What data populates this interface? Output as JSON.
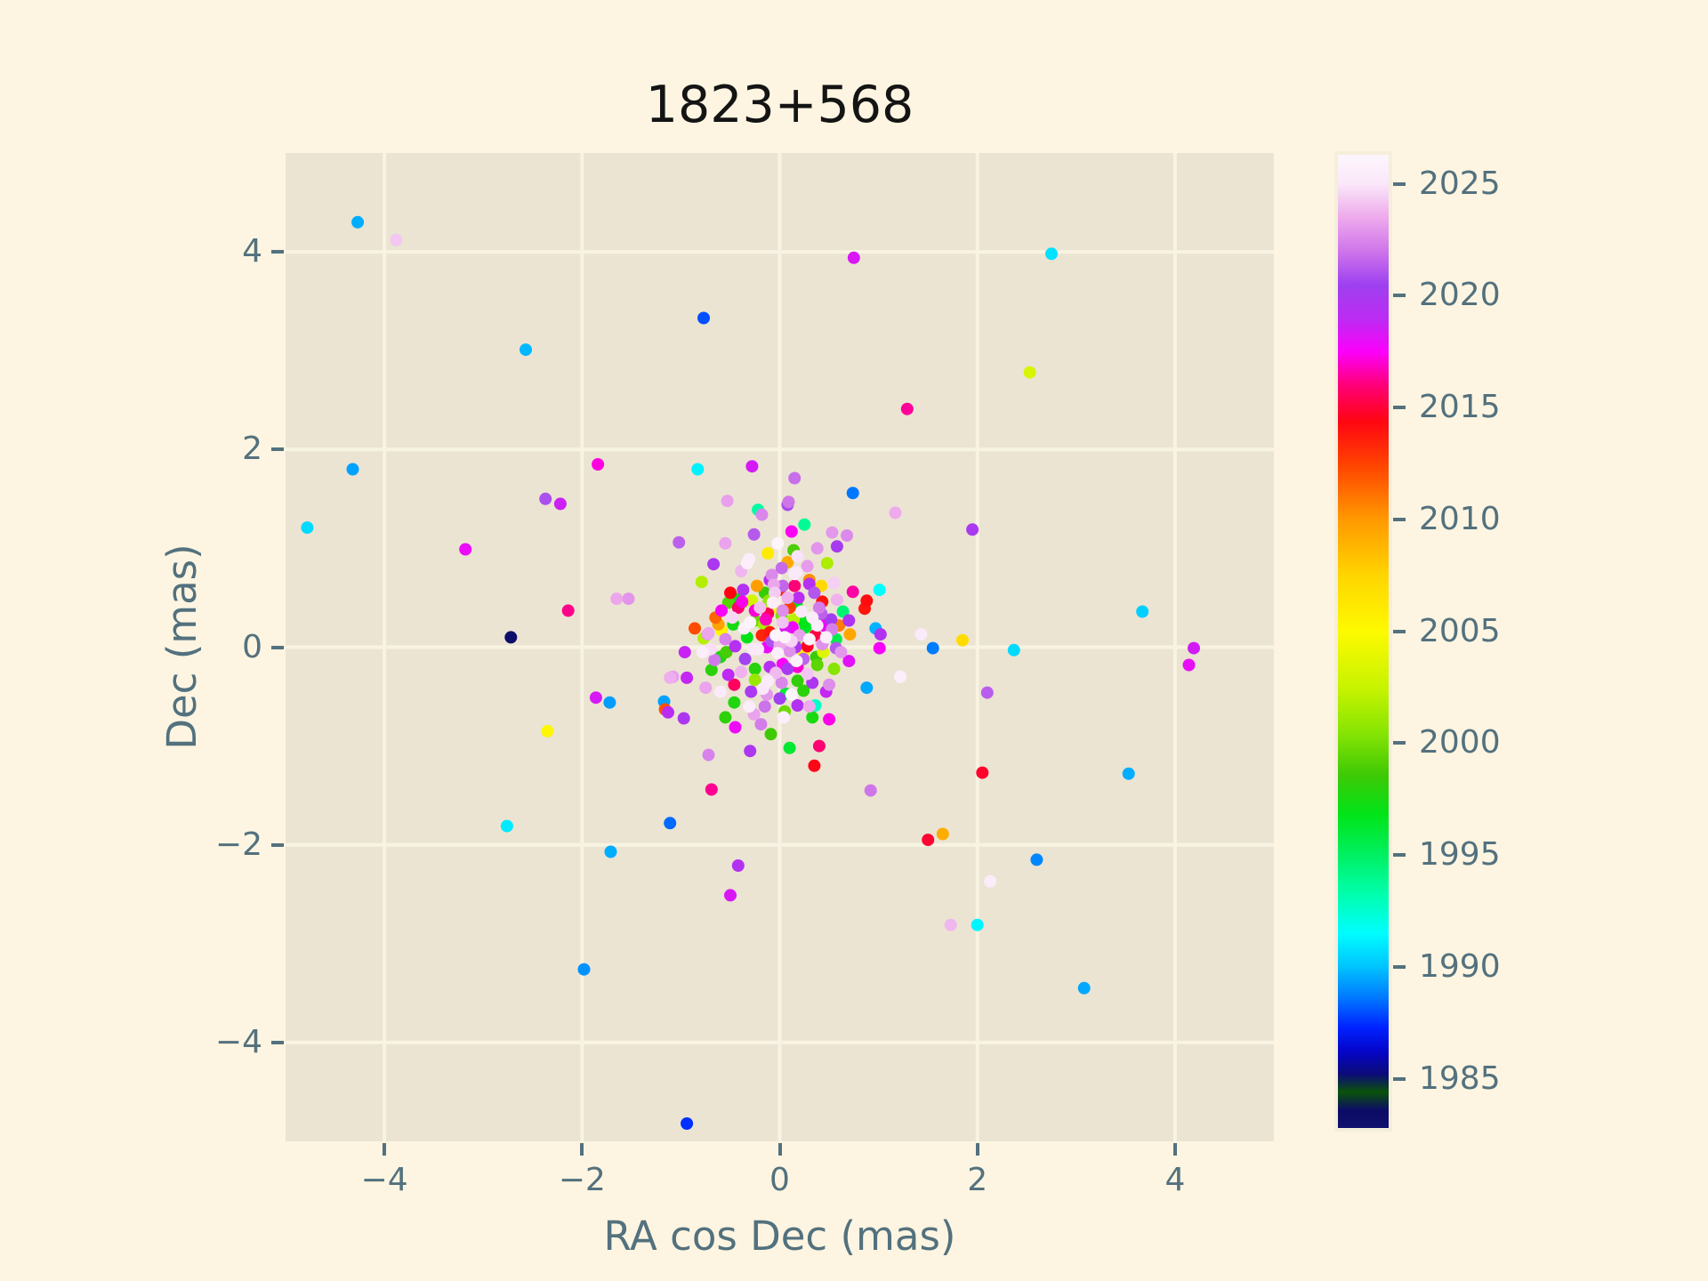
{
  "colors": {
    "background": "#fdf5e1",
    "plot_background": "#ebe4d2",
    "grid": "#f8f3e2",
    "text": "#53717e",
    "title": "#141414"
  },
  "chart_data": {
    "type": "scatter",
    "title": "1823+568",
    "xlabel": "RA cos Dec (mas)",
    "ylabel": "Dec (mas)",
    "xlim": [
      -5,
      5
    ],
    "ylim": [
      -5,
      5
    ],
    "grid": true,
    "legend": "colorbar-right",
    "xticks": {
      "values": [
        -4,
        -2,
        0,
        2,
        4
      ],
      "labels": [
        "−4",
        "−2",
        "0",
        "2",
        "4"
      ]
    },
    "yticks": {
      "values": [
        -4,
        -2,
        0,
        2,
        4
      ],
      "labels": [
        "−4",
        "−2",
        "0",
        "2",
        "4"
      ]
    },
    "colorbar": {
      "vmin": 1982.8,
      "vmax": 2026.3,
      "ticks": [
        1985,
        1990,
        1995,
        2000,
        2005,
        2010,
        2015,
        2020,
        2025
      ],
      "tick_labels": [
        "1985",
        "1990",
        "1995",
        "2000",
        "2005",
        "2010",
        "2015",
        "2020",
        "2025"
      ],
      "stops": [
        [
          1982.8,
          "#10106e"
        ],
        [
          1983.6,
          "#0c0c66"
        ],
        [
          1984.4,
          "#0a520a"
        ],
        [
          1985.2,
          "#0b0b78"
        ],
        [
          1986.2,
          "#0505c8"
        ],
        [
          1987.3,
          "#0022ff"
        ],
        [
          1988.6,
          "#0077ff"
        ],
        [
          1990.0,
          "#00c3ff"
        ],
        [
          1991.5,
          "#00fdff"
        ],
        [
          1993.2,
          "#00ffaf"
        ],
        [
          1995.0,
          "#00f062"
        ],
        [
          1996.8,
          "#00e418"
        ],
        [
          1998.6,
          "#3fc905"
        ],
        [
          2000.4,
          "#85e403"
        ],
        [
          2002.4,
          "#c6f300"
        ],
        [
          2005.0,
          "#fdfa00"
        ],
        [
          2007.5,
          "#ffd500"
        ],
        [
          2010.0,
          "#ff9900"
        ],
        [
          2012.4,
          "#ff4400"
        ],
        [
          2014.4,
          "#ff0512"
        ],
        [
          2016.0,
          "#ff0077"
        ],
        [
          2017.5,
          "#fb00fb"
        ],
        [
          2019.0,
          "#bb2cf2"
        ],
        [
          2020.5,
          "#9e41f0"
        ],
        [
          2022.0,
          "#cf75ea"
        ],
        [
          2023.5,
          "#eeaaec"
        ],
        [
          2025.0,
          "#fae7f9"
        ],
        [
          2026.3,
          "#fdf6fc"
        ]
      ]
    },
    "points": [
      [
        -4.27,
        4.3,
        1989.6
      ],
      [
        -3.88,
        4.12,
        2024.2
      ],
      [
        -2.57,
        3.01,
        1989.8
      ],
      [
        -0.77,
        3.33,
        1988.0
      ],
      [
        -4.32,
        1.8,
        1989.4
      ],
      [
        -4.78,
        1.21,
        1990.6
      ],
      [
        -1.84,
        1.85,
        2017.2
      ],
      [
        -0.83,
        1.8,
        1991.2
      ],
      [
        -0.28,
        1.83,
        2018.4
      ],
      [
        -2.37,
        1.5,
        2020.9
      ],
      [
        -2.22,
        1.45,
        2018.6
      ],
      [
        -3.18,
        0.99,
        2017.9
      ],
      [
        -2.14,
        0.37,
        2016.2
      ],
      [
        -2.72,
        0.1,
        1983.2
      ],
      [
        -1.65,
        0.49,
        2023.4
      ],
      [
        -1.53,
        0.49,
        2022.9
      ],
      [
        -1.02,
        1.06,
        2021.4
      ],
      [
        -0.67,
        0.84,
        2019.8
      ],
      [
        -0.79,
        0.66,
        2001.8
      ],
      [
        -0.31,
        0.89,
        2025.6
      ],
      [
        -0.86,
        0.19,
        2012.2
      ],
      [
        -0.59,
        0.37,
        2017.6
      ],
      [
        0.75,
        3.94,
        2018.3
      ],
      [
        2.75,
        3.98,
        1990.8
      ],
      [
        2.53,
        2.78,
        2003.2
      ],
      [
        1.29,
        2.41,
        2016.4
      ],
      [
        1.95,
        1.19,
        2019.9
      ],
      [
        3.67,
        0.36,
        1990.3
      ],
      [
        4.19,
        -0.01,
        2018.5
      ],
      [
        4.14,
        -0.18,
        2018.0
      ],
      [
        1.55,
        -0.01,
        1988.7
      ],
      [
        2.37,
        -0.03,
        1990.6
      ],
      [
        2.1,
        -0.46,
        2021.3
      ],
      [
        2.05,
        -1.27,
        2014.8
      ],
      [
        3.53,
        -1.28,
        1989.6
      ],
      [
        0.4,
        -1.0,
        2015.9
      ],
      [
        0.35,
        -1.2,
        2014.5
      ],
      [
        0.92,
        -1.45,
        2022.0
      ],
      [
        1.5,
        -1.95,
        2014.9
      ],
      [
        1.65,
        -1.89,
        2009.2
      ],
      [
        2.6,
        -2.15,
        1988.9
      ],
      [
        2.13,
        -2.37,
        2025.4
      ],
      [
        1.73,
        -2.81,
        2023.8
      ],
      [
        2.0,
        -2.81,
        1991.3
      ],
      [
        3.08,
        -3.45,
        1989.5
      ],
      [
        -2.35,
        -0.85,
        2005.2
      ],
      [
        -2.76,
        -1.81,
        1991.0
      ],
      [
        -1.72,
        -0.56,
        1989.3
      ],
      [
        -1.86,
        -0.51,
        2018.4
      ],
      [
        -1.71,
        -2.07,
        1989.6
      ],
      [
        -1.98,
        -3.26,
        1989.1
      ],
      [
        -0.94,
        -4.82,
        1987.5
      ],
      [
        -1.11,
        -1.78,
        1988.4
      ],
      [
        -0.5,
        -2.51,
        2018.3
      ],
      [
        -0.42,
        -2.21,
        2019.4
      ],
      [
        -0.69,
        -1.44,
        2016.3
      ],
      [
        -1.16,
        -0.63,
        2012.1
      ],
      [
        -1.13,
        -0.66,
        2019.1
      ],
      [
        -1.17,
        -0.55,
        1989.4
      ],
      [
        -1.08,
        -0.3,
        2023.2
      ],
      [
        -0.97,
        -0.72,
        2019.8
      ],
      [
        -0.72,
        -1.09,
        2022.4
      ],
      [
        -0.96,
        -0.05,
        2018.7
      ],
      [
        -0.78,
        -0.05,
        2025.5
      ],
      [
        -0.66,
        -0.13,
        2022.1
      ],
      [
        -0.94,
        -0.31,
        2018.8
      ],
      [
        -1.11,
        -0.31,
        2023.6
      ],
      [
        -0.69,
        -0.23,
        1998.0
      ],
      [
        -0.75,
        -0.41,
        2023.3
      ],
      [
        -0.62,
        0.23,
        2009.6
      ],
      [
        -0.72,
        0.14,
        2023.4
      ],
      [
        0.74,
        1.56,
        1988.6
      ],
      [
        1.17,
        1.36,
        2023.5
      ],
      [
        0.53,
        1.16,
        2023.0
      ],
      [
        0.68,
        1.13,
        2022.6
      ],
      [
        0.15,
        1.71,
        2021.8
      ],
      [
        0.08,
        1.44,
        2020.8
      ],
      [
        0.25,
        1.24,
        1993.8
      ],
      [
        0.12,
        1.17,
        2017.4
      ],
      [
        0.14,
        0.98,
        1998.9
      ],
      [
        0.08,
        0.86,
        2009.3
      ],
      [
        0.15,
        0.74,
        2025.2
      ],
      [
        -0.53,
        1.48,
        2023.2
      ],
      [
        0.09,
        1.47,
        2022.0
      ],
      [
        -0.22,
        1.39,
        1993.5
      ],
      [
        -0.18,
        1.34,
        2022.5
      ],
      [
        -0.26,
        1.14,
        2021.2
      ],
      [
        -0.08,
        0.73,
        2022.6
      ],
      [
        0.3,
        0.68,
        2010.3
      ],
      [
        0.3,
        0.64,
        2019.2
      ],
      [
        -0.06,
        0.63,
        2023.4
      ],
      [
        0.03,
        0.62,
        2021.6
      ],
      [
        -0.37,
        0.58,
        2019.4
      ],
      [
        -0.15,
        0.55,
        1998.3
      ],
      [
        -0.11,
        0.47,
        2000.8
      ],
      [
        -0.45,
        0.49,
        1997.2
      ],
      [
        -0.38,
        0.45,
        2001.2
      ],
      [
        0.0,
        0.58,
        2013.6
      ],
      [
        0.19,
        0.5,
        2019.0
      ],
      [
        0.08,
        0.5,
        2023.6
      ],
      [
        -0.39,
        0.77,
        2023.8
      ],
      [
        0.17,
        0.76,
        2025.0
      ],
      [
        1.22,
        -0.3,
        2025.7
      ],
      [
        0.88,
        -0.41,
        1989.5
      ],
      [
        0.36,
        -0.59,
        1992.6
      ],
      [
        0.33,
        -0.71,
        1997.5
      ],
      [
        -0.09,
        -0.88,
        1998.6
      ],
      [
        -0.46,
        -0.38,
        2015.6
      ],
      [
        0.97,
        0.19,
        1989.7
      ],
      [
        1.02,
        0.13,
        2019.5
      ],
      [
        1.01,
        0.58,
        1991.5
      ],
      [
        0.74,
        0.56,
        2016.5
      ],
      [
        0.88,
        0.47,
        2014.2
      ],
      [
        0.86,
        0.39,
        2013.9
      ],
      [
        1.43,
        0.13,
        2025.3
      ],
      [
        1.85,
        0.07,
        2007.0
      ],
      [
        1.01,
        -0.01,
        2017.6
      ],
      [
        0.7,
        0.27,
        2019.6
      ],
      [
        0.71,
        0.13,
        2009.4
      ],
      [
        0.43,
        0.31,
        1997.8
      ],
      [
        0.43,
        0.46,
        2014.0
      ],
      [
        0.17,
        0.44,
        1996.6
      ],
      [
        -0.38,
        0.46,
        2017.3
      ],
      [
        -0.52,
        0.45,
        1999.2
      ],
      [
        -0.07,
        0.45,
        2025.6
      ],
      [
        0.42,
        0.34,
        2021.4
      ],
      [
        0.03,
        0.37,
        2022.7
      ],
      [
        -0.25,
        0.37,
        2017.1
      ],
      [
        -0.12,
        0.34,
        2015.4
      ],
      [
        -0.59,
        0.17,
        2005.4
      ],
      [
        -0.73,
        0.13,
        2023.1
      ],
      [
        -0.47,
        0.23,
        1997.4
      ],
      [
        -0.36,
        0.19,
        2025.8
      ],
      [
        -0.25,
        0.27,
        1999.6
      ],
      [
        -0.16,
        0.23,
        2001.4
      ],
      [
        -0.1,
        0.15,
        2013.8
      ],
      [
        0.03,
        0.25,
        2024.1
      ],
      [
        0.13,
        0.2,
        2017.7
      ],
      [
        0.25,
        0.25,
        1996.8
      ],
      [
        0.38,
        0.22,
        2025.4
      ],
      [
        0.53,
        0.18,
        2022.3
      ],
      [
        -0.45,
        0.01,
        2019.3
      ],
      [
        -0.54,
        -0.05,
        1998.8
      ],
      [
        -0.27,
        -0.02,
        2025.1
      ],
      [
        -0.13,
        0.0,
        2017.9
      ],
      [
        0.0,
        0.03,
        2023.5
      ],
      [
        0.15,
        0.04,
        1999.0
      ],
      [
        0.28,
        0.01,
        2014.6
      ],
      [
        0.43,
        0.03,
        2022.8
      ],
      [
        0.57,
        -0.01,
        2021.2
      ],
      [
        0.24,
        -0.05,
        2005.6
      ],
      [
        0.37,
        -0.1,
        1998.4
      ],
      [
        0.17,
        -0.14,
        2025.9
      ],
      [
        0.03,
        -0.17,
        2017.5
      ],
      [
        -0.1,
        -0.2,
        2019.2
      ],
      [
        -0.25,
        -0.22,
        1997.9
      ],
      [
        -0.39,
        -0.25,
        2023.7
      ],
      [
        -0.12,
        -0.34,
        2025.3
      ],
      [
        0.02,
        -0.36,
        2022.5
      ],
      [
        0.18,
        -0.34,
        1998.2
      ],
      [
        0.33,
        -0.36,
        2019.7
      ],
      [
        0.47,
        -0.45,
        2018.8
      ],
      [
        0.06,
        -0.47,
        1996.0
      ],
      [
        -0.13,
        -0.48,
        2023.0
      ],
      [
        0.18,
        -0.59,
        2019.5
      ],
      [
        -0.31,
        -0.6,
        2025.5
      ],
      [
        -0.46,
        -0.56,
        1997.7
      ],
      [
        -0.29,
        -0.45,
        2019.9
      ],
      [
        0.5,
        -0.73,
        2017.3
      ],
      [
        -0.55,
        -0.71,
        1998.1
      ],
      [
        -0.26,
        -0.68,
        2023.3
      ],
      [
        0.04,
        -0.71,
        2025.7
      ],
      [
        -0.19,
        -0.78,
        2022.2
      ],
      [
        -0.45,
        -0.81,
        2017.8
      ],
      [
        -0.77,
        0.09,
        2001.9
      ],
      [
        -0.3,
        -1.05,
        2019.7
      ],
      [
        0.1,
        -1.02,
        1996.2
      ],
      [
        0.05,
        0.1,
        2025.8
      ],
      [
        0.12,
        0.06,
        2024.5
      ],
      [
        -0.04,
        0.12,
        2026.0
      ],
      [
        0.2,
        0.12,
        2023.2
      ],
      [
        0.1,
        -0.04,
        2022.8
      ],
      [
        -0.02,
        -0.06,
        2025.5
      ],
      [
        0.16,
        0.0,
        2019.6
      ],
      [
        0.06,
        0.2,
        2018.2
      ],
      [
        -0.08,
        0.06,
        2021.0
      ],
      [
        0.02,
        0.32,
        2000.2
      ],
      [
        0.14,
        0.28,
        2002.0
      ],
      [
        -0.14,
        0.28,
        2016.8
      ],
      [
        0.26,
        0.2,
        1996.4
      ],
      [
        0.3,
        0.08,
        2025.9
      ],
      [
        0.24,
        -0.12,
        2021.5
      ],
      [
        -0.18,
        0.12,
        2013.4
      ],
      [
        -0.22,
        -0.02,
        2025.2
      ],
      [
        0.08,
        -0.22,
        2019.9
      ],
      [
        -0.04,
        -0.26,
        2023.9
      ],
      [
        0.18,
        -0.2,
        2017.0
      ],
      [
        0.28,
        -0.27,
        2024.2
      ],
      [
        0.38,
        -0.18,
        1999.4
      ],
      [
        0.44,
        -0.05,
        2003.5
      ],
      [
        0.36,
        0.12,
        2015.2
      ],
      [
        0.47,
        0.1,
        2025.6
      ],
      [
        0.52,
        0.28,
        2020.2
      ],
      [
        0.57,
        0.08,
        1995.5
      ],
      [
        0.4,
        0.4,
        2022.2
      ],
      [
        0.55,
        -0.22,
        2000.5
      ],
      [
        0.62,
        -0.05,
        2023.0
      ],
      [
        0.6,
        0.22,
        2010.8
      ],
      [
        0.33,
        0.3,
        2025.4
      ],
      [
        -0.3,
        0.25,
        2026.1
      ],
      [
        -0.33,
        0.1,
        1996.9
      ],
      [
        -0.35,
        -0.12,
        2020.6
      ],
      [
        -0.25,
        -0.33,
        2001.0
      ],
      [
        -0.17,
        -0.42,
        2025.0
      ],
      [
        -0.55,
        0.08,
        2022.4
      ],
      [
        -0.6,
        -0.1,
        1997.6
      ],
      [
        -0.48,
        0.3,
        2024.6
      ],
      [
        -0.52,
        -0.28,
        2018.9
      ],
      [
        0.0,
        -0.52,
        2020.4
      ],
      [
        0.12,
        -0.48,
        2026.2
      ],
      [
        0.24,
        -0.44,
        1998.0
      ],
      [
        -0.07,
        0.4,
        2004.6
      ],
      [
        -0.2,
        0.4,
        2024.0
      ],
      [
        0.44,
        0.22,
        2017.8
      ],
      [
        0.5,
        -0.38,
        2022.7
      ],
      [
        0.1,
        0.4,
        2012.6
      ],
      [
        0.22,
        0.36,
        2025.1
      ],
      [
        -0.42,
        0.4,
        2015.9
      ],
      [
        -0.28,
        0.47,
        2003.0
      ],
      [
        0.05,
        -0.65,
        1999.8
      ],
      [
        -0.15,
        -0.6,
        2021.9
      ],
      [
        0.3,
        -0.6,
        2023.5
      ],
      [
        0.64,
        0.36,
        1994.6
      ],
      [
        0.7,
        -0.14,
        2018.1
      ],
      [
        -0.65,
        0.3,
        2011.4
      ],
      [
        -0.7,
        -0.02,
        2024.8
      ],
      [
        -0.05,
        0.55,
        2024.3
      ],
      [
        0.35,
        0.55,
        2021.1
      ],
      [
        0.58,
        0.48,
        2023.7
      ],
      [
        -0.5,
        0.55,
        2014.4
      ],
      [
        -0.6,
        -0.45,
        2025.3
      ],
      [
        0.15,
        0.62,
        2016.0
      ],
      [
        0.42,
        0.62,
        2007.2
      ],
      [
        -0.23,
        0.62,
        2009.8
      ],
      [
        -0.1,
        0.68,
        2019.1
      ],
      [
        0.55,
        0.65,
        2024.4
      ],
      [
        0.02,
        0.8,
        2021.7
      ],
      [
        0.28,
        0.82,
        2023.1
      ],
      [
        -0.33,
        0.85,
        2025.7
      ],
      [
        0.48,
        0.85,
        2001.6
      ],
      [
        0.18,
        0.92,
        2024.9
      ],
      [
        -0.12,
        0.95,
        2006.0
      ],
      [
        0.38,
        1.0,
        2022.9
      ],
      [
        -0.02,
        1.05,
        2026.2
      ],
      [
        0.58,
        1.02,
        2020.0
      ],
      [
        -0.55,
        1.05,
        2023.3
      ]
    ]
  }
}
